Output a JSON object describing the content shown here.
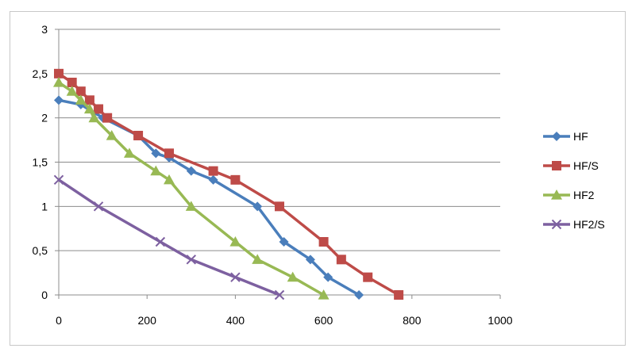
{
  "chart_data": {
    "type": "line",
    "title": "",
    "xlabel": "",
    "ylabel": "",
    "xlim": [
      0,
      1000
    ],
    "ylim": [
      0,
      3
    ],
    "x_ticks": [
      0,
      200,
      400,
      600,
      800,
      1000
    ],
    "x_tick_labels": [
      "0",
      "200",
      "400",
      "600",
      "800",
      "1000"
    ],
    "y_ticks": [
      0,
      0.5,
      1,
      1.5,
      2,
      2.5,
      3
    ],
    "y_tick_labels": [
      "0",
      "0,5",
      "1",
      "1,5",
      "2",
      "2,5",
      "3"
    ],
    "grid": "horizontal",
    "legend_position": "right",
    "series": [
      {
        "name": "HF",
        "color": "#4a7ebb",
        "marker": "diamond",
        "points": [
          [
            0,
            2.2
          ],
          [
            50,
            2.15
          ],
          [
            100,
            2.0
          ],
          [
            180,
            1.8
          ],
          [
            220,
            1.6
          ],
          [
            250,
            1.55
          ],
          [
            300,
            1.4
          ],
          [
            350,
            1.3
          ],
          [
            450,
            1.0
          ],
          [
            510,
            0.6
          ],
          [
            570,
            0.4
          ],
          [
            610,
            0.2
          ],
          [
            680,
            0.0
          ]
        ]
      },
      {
        "name": "HF/S",
        "color": "#be4b48",
        "marker": "square",
        "points": [
          [
            0,
            2.5
          ],
          [
            30,
            2.4
          ],
          [
            50,
            2.3
          ],
          [
            70,
            2.2
          ],
          [
            90,
            2.1
          ],
          [
            110,
            2.0
          ],
          [
            180,
            1.8
          ],
          [
            250,
            1.6
          ],
          [
            350,
            1.4
          ],
          [
            400,
            1.3
          ],
          [
            500,
            1.0
          ],
          [
            600,
            0.6
          ],
          [
            640,
            0.4
          ],
          [
            700,
            0.2
          ],
          [
            770,
            0.0
          ]
        ]
      },
      {
        "name": "HF2",
        "color": "#98b954",
        "marker": "triangle",
        "points": [
          [
            0,
            2.4
          ],
          [
            30,
            2.3
          ],
          [
            50,
            2.2
          ],
          [
            70,
            2.1
          ],
          [
            80,
            2.0
          ],
          [
            120,
            1.8
          ],
          [
            160,
            1.6
          ],
          [
            220,
            1.4
          ],
          [
            250,
            1.3
          ],
          [
            300,
            1.0
          ],
          [
            400,
            0.6
          ],
          [
            450,
            0.4
          ],
          [
            530,
            0.2
          ],
          [
            600,
            0.0
          ]
        ]
      },
      {
        "name": "HF2/S",
        "color": "#7d60a0",
        "marker": "x",
        "points": [
          [
            0,
            1.3
          ],
          [
            90,
            1.0
          ],
          [
            230,
            0.6
          ],
          [
            300,
            0.4
          ],
          [
            400,
            0.2
          ],
          [
            500,
            0.0
          ]
        ]
      }
    ]
  }
}
